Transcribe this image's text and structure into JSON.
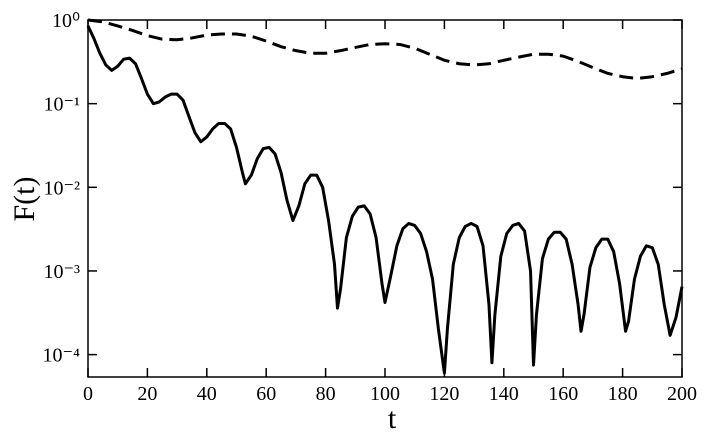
{
  "chart_data": {
    "type": "line",
    "x_label": "t",
    "y_label": "F(t)",
    "log_y": true,
    "xlim": [
      0,
      200
    ],
    "xticks": [
      0,
      20,
      40,
      60,
      80,
      100,
      120,
      140,
      160,
      180,
      200
    ],
    "ylim": [
      5.4e-05,
      1
    ],
    "yticks": [
      {
        "value": 1,
        "label": "10⁰"
      },
      {
        "value": 0.1,
        "label": "10⁻¹"
      },
      {
        "value": 0.01,
        "label": "10⁻²"
      },
      {
        "value": 0.001,
        "label": "10⁻³"
      },
      {
        "value": 0.0001,
        "label": "10⁻⁴"
      }
    ],
    "series": [
      {
        "color": "#000000",
        "dashed": false,
        "x": [
          0,
          2,
          4,
          6,
          8,
          10,
          12,
          14,
          16,
          18,
          20,
          22,
          24,
          26,
          28,
          30,
          32,
          34,
          36,
          38,
          40,
          42,
          44,
          46,
          48,
          50,
          52,
          53,
          55,
          57,
          59,
          61,
          63,
          65,
          67,
          69,
          71,
          73,
          75,
          77,
          79,
          81,
          83,
          84,
          85,
          87,
          89,
          91,
          93,
          95,
          97,
          99,
          100,
          102,
          104,
          106,
          108,
          110,
          112,
          114,
          116,
          118,
          120,
          121,
          123,
          125,
          127,
          129,
          131,
          133,
          135,
          136,
          137,
          139,
          141,
          143,
          145,
          147,
          149,
          150,
          151,
          153,
          155,
          157,
          159,
          161,
          163,
          165,
          166,
          167,
          169,
          171,
          173,
          175,
          177,
          179,
          181,
          182,
          184,
          186,
          188,
          190,
          192,
          194,
          196,
          198,
          200
        ],
        "values": [
          0.85,
          0.6,
          0.4,
          0.29,
          0.25,
          0.28,
          0.34,
          0.35,
          0.3,
          0.2,
          0.13,
          0.1,
          0.105,
          0.12,
          0.13,
          0.13,
          0.11,
          0.07,
          0.045,
          0.035,
          0.04,
          0.05,
          0.058,
          0.058,
          0.05,
          0.03,
          0.015,
          0.011,
          0.014,
          0.022,
          0.029,
          0.03,
          0.025,
          0.015,
          0.007,
          0.004,
          0.006,
          0.011,
          0.014,
          0.014,
          0.01,
          0.004,
          0.0012,
          0.00036,
          0.0006,
          0.0025,
          0.0045,
          0.0058,
          0.006,
          0.0048,
          0.0025,
          0.0007,
          0.00042,
          0.0009,
          0.002,
          0.0032,
          0.0037,
          0.0035,
          0.0028,
          0.0017,
          0.0008,
          0.0002,
          6e-05,
          0.0002,
          0.0012,
          0.0025,
          0.0034,
          0.0037,
          0.0034,
          0.002,
          0.0004,
          8e-05,
          0.0003,
          0.0015,
          0.0028,
          0.0035,
          0.0037,
          0.003,
          0.001,
          7.5e-05,
          0.0003,
          0.0014,
          0.0024,
          0.0029,
          0.0029,
          0.0024,
          0.0012,
          0.0004,
          0.00019,
          0.0003,
          0.0011,
          0.0019,
          0.0024,
          0.0024,
          0.0017,
          0.0007,
          0.00019,
          0.00025,
          0.0008,
          0.0015,
          0.002,
          0.0019,
          0.0012,
          0.0004,
          0.00017,
          0.00028,
          0.00065
        ]
      },
      {
        "color": "#000000",
        "dashed": true,
        "x": [
          0,
          5,
          10,
          15,
          20,
          25,
          30,
          35,
          40,
          45,
          50,
          55,
          60,
          65,
          70,
          75,
          80,
          85,
          90,
          95,
          100,
          105,
          110,
          115,
          120,
          125,
          130,
          135,
          140,
          145,
          150,
          155,
          160,
          165,
          170,
          175,
          180,
          185,
          190,
          195,
          200
        ],
        "values": [
          1,
          0.95,
          0.85,
          0.75,
          0.65,
          0.59,
          0.58,
          0.61,
          0.66,
          0.68,
          0.68,
          0.64,
          0.56,
          0.48,
          0.43,
          0.4,
          0.4,
          0.43,
          0.47,
          0.51,
          0.52,
          0.51,
          0.46,
          0.39,
          0.33,
          0.3,
          0.29,
          0.3,
          0.33,
          0.36,
          0.39,
          0.39,
          0.37,
          0.32,
          0.27,
          0.23,
          0.21,
          0.2,
          0.21,
          0.23,
          0.26
        ]
      }
    ]
  }
}
